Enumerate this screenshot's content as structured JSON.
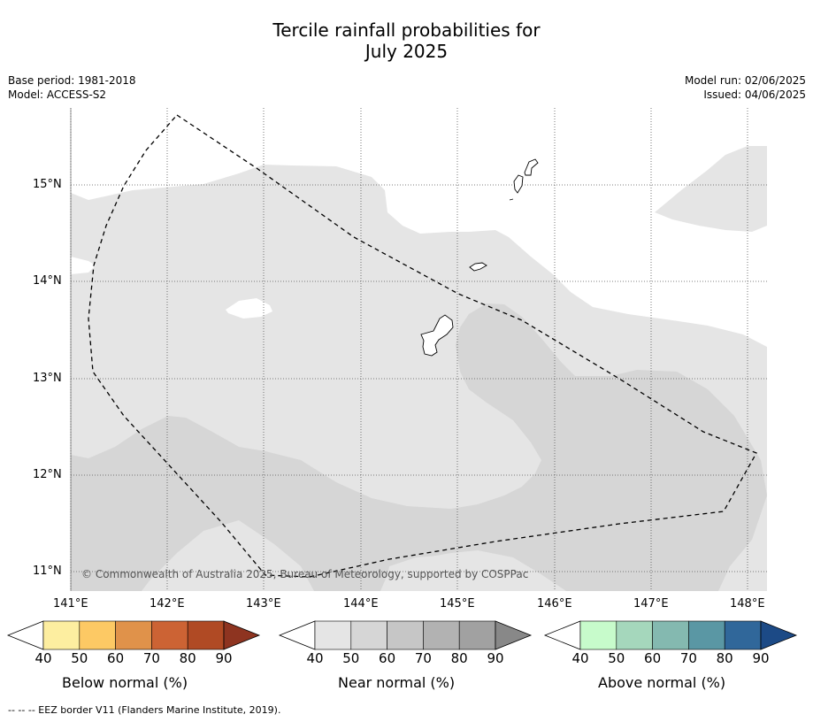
{
  "title_line1": "Tercile rainfall probabilities for",
  "title_line2": "July 2025",
  "meta_left": {
    "base_period": "Base period: 1981-2018",
    "model": "Model: ACCESS-S2"
  },
  "meta_right": {
    "model_run": "Model run: 02/06/2025",
    "issued": "Issued: 04/06/2025"
  },
  "map": {
    "lon_ticks": [
      "141°E",
      "142°E",
      "143°E",
      "144°E",
      "145°E",
      "146°E",
      "147°E",
      "148°E"
    ],
    "lat_ticks": [
      "15°N",
      "14°N",
      "13°N",
      "12°N",
      "11°N"
    ],
    "copyright": "© Commonwealth of Australia 2025, Bureau of Meteorology, supported by COSPPac",
    "colors": {
      "near_40_50": "#e5e5e5",
      "near_50_60": "#d6d6d6",
      "land_outline": "#000000",
      "eez": "#000000"
    }
  },
  "colorbars": [
    {
      "label": "Below normal (%)",
      "ticks": [
        "40",
        "50",
        "60",
        "70",
        "80",
        "90"
      ],
      "colors": [
        "#ffffff",
        "#fdeea0",
        "#fdc964",
        "#e0924a",
        "#cc6334",
        "#b04a24",
        "#8e3420"
      ]
    },
    {
      "label": "Near normal (%)",
      "ticks": [
        "40",
        "50",
        "60",
        "70",
        "80",
        "90"
      ],
      "colors": [
        "#ffffff",
        "#e5e5e5",
        "#d6d6d6",
        "#c6c6c6",
        "#b2b2b2",
        "#a1a1a1",
        "#888888"
      ]
    },
    {
      "label": "Above normal (%)",
      "ticks": [
        "40",
        "50",
        "60",
        "70",
        "80",
        "90"
      ],
      "colors": [
        "#ffffff",
        "#c7fbcb",
        "#a5d7bc",
        "#84b9b0",
        "#5a97a4",
        "#30679a",
        "#1c4a86"
      ]
    }
  ],
  "footer": "--  --  -- EEZ border V11 (Flanders Marine Institute, 2019)."
}
